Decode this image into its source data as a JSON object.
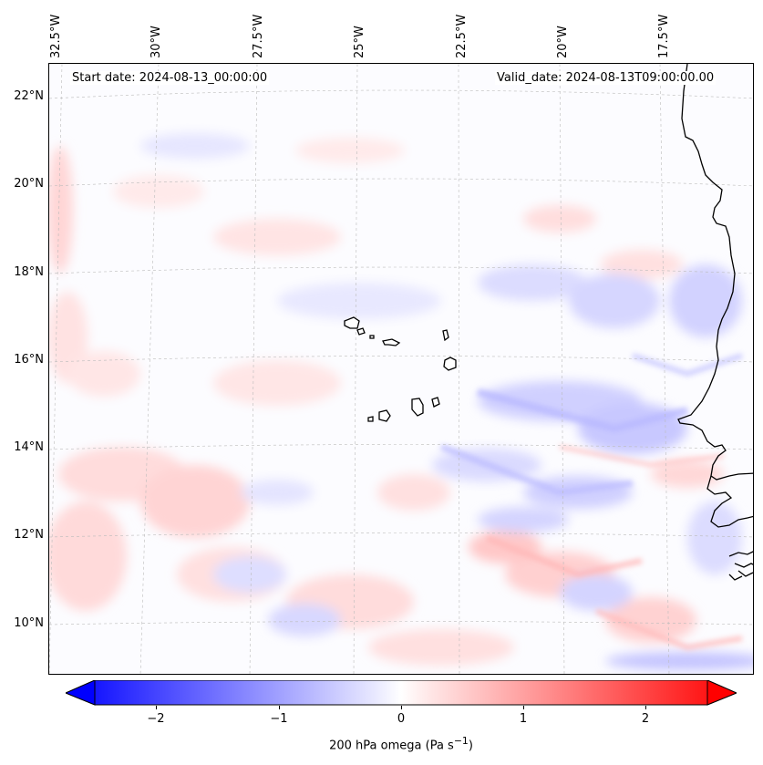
{
  "map": {
    "start_date": "Start date: 2024-08-13_00:00:00",
    "valid_date": "Valid_date: 2024-08-13T09:00:00.00",
    "variable": "200 hPa omega",
    "units_prefix": "Pa s",
    "units_exp": "−1",
    "lon_labels": [
      "32.5°W",
      "30°W",
      "27.5°W",
      "25°W",
      "22.5°W",
      "20°W",
      "17.5°W"
    ],
    "lat_labels": [
      "22°N",
      "20°N",
      "18°N",
      "16°N",
      "14°N",
      "12°N",
      "10°N"
    ],
    "colorbar_ticks": [
      "−2",
      "−1",
      "0",
      "1",
      "2"
    ],
    "colorbar_range": [
      -2.7,
      2.7
    ],
    "colors": {
      "negative": "#0000ff",
      "neutral": "#ffffff",
      "positive": "#ff0000",
      "coastline": "#000000"
    },
    "coastline_style": "black solid lines (West African coast, Cape Verde islands)"
  }
}
